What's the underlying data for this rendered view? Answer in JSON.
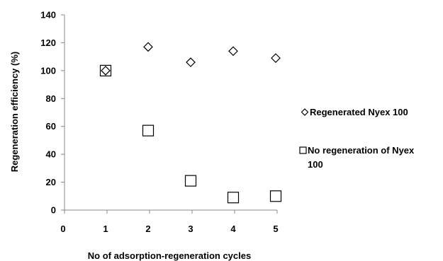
{
  "chart_data": {
    "type": "scatter",
    "title": "",
    "xlabel": "No of adsorption-regeneration cycles",
    "ylabel": "Regeneration efficiency (%)",
    "xlim": [
      0,
      5
    ],
    "ylim": [
      0,
      140
    ],
    "x_ticks": [
      "0",
      "1",
      "2",
      "3",
      "4",
      "5"
    ],
    "y_ticks": [
      "0",
      "20",
      "40",
      "60",
      "80",
      "100",
      "120",
      "140"
    ],
    "grid": false,
    "legend_position": "right",
    "series": [
      {
        "name": "Regenerated Nyex 100",
        "marker": "diamond",
        "x": [
          1,
          2,
          3,
          4,
          5
        ],
        "values": [
          100,
          117,
          106,
          114,
          109
        ]
      },
      {
        "name": "No regeneration of Nyex 100",
        "marker": "square",
        "x": [
          1,
          2,
          3,
          4,
          5
        ],
        "values": [
          100,
          57,
          21,
          9,
          10
        ]
      }
    ]
  }
}
